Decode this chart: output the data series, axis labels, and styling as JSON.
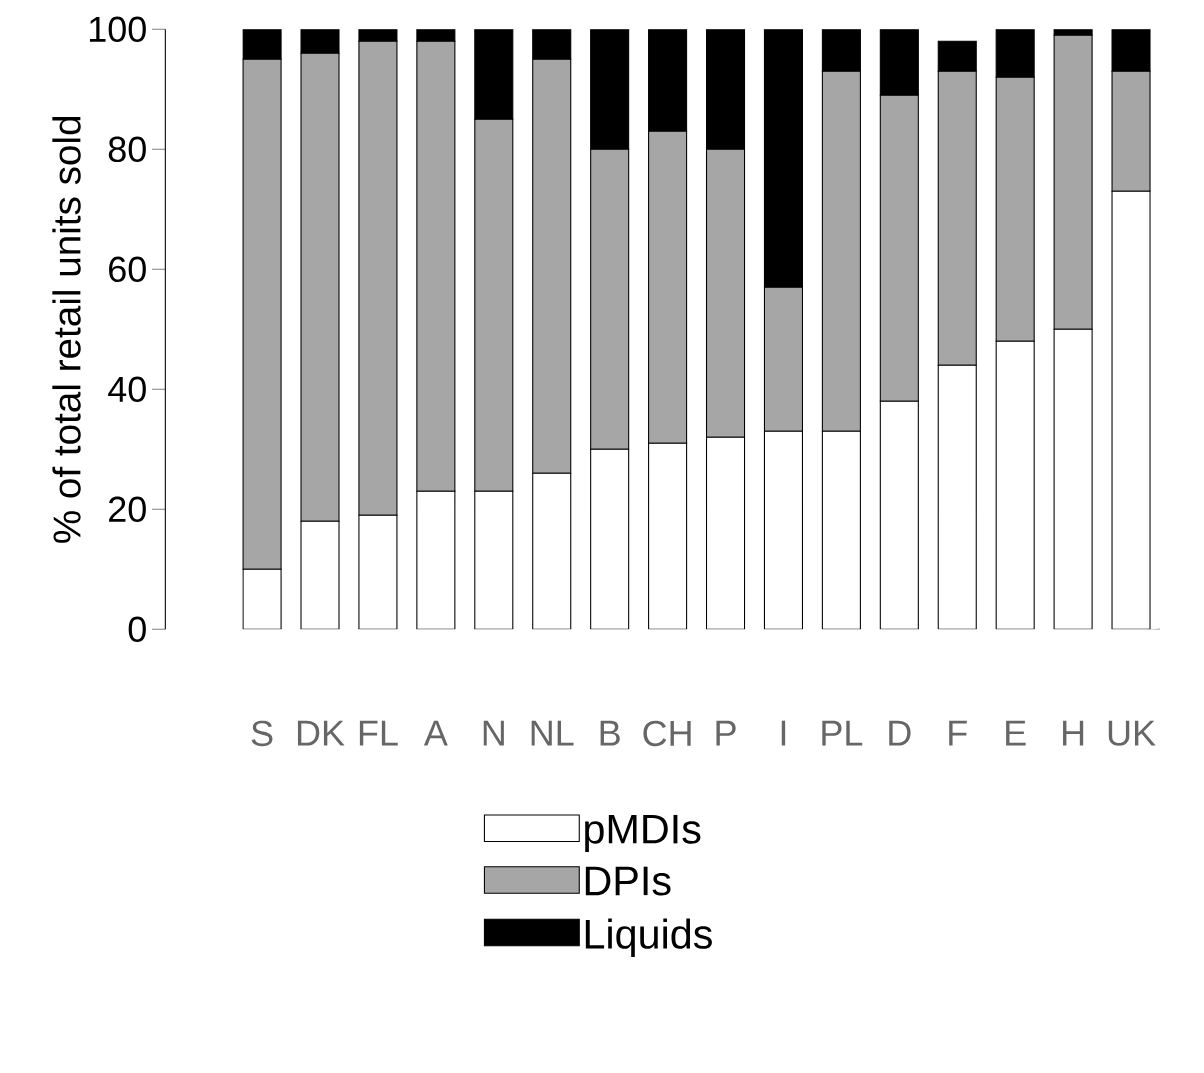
{
  "chart_data": {
    "type": "bar",
    "stacked": true,
    "ylabel": "% of total retail units sold",
    "categories": [
      "S",
      "DK",
      "FL",
      "A",
      "N",
      "NL",
      "B",
      "CH",
      "P",
      "I",
      "PL",
      "D",
      "F",
      "E",
      "H",
      "UK"
    ],
    "series": [
      {
        "name": "pMDIs",
        "color": "#ffffff",
        "values": [
          10,
          18,
          19,
          23,
          23,
          26,
          30,
          31,
          32,
          33,
          33,
          38,
          44,
          48,
          50,
          73
        ]
      },
      {
        "name": "DPIs",
        "color": "#a6a6a6",
        "values": [
          85,
          78,
          79,
          75,
          62,
          69,
          50,
          52,
          48,
          24,
          60,
          51,
          49,
          44,
          49,
          20
        ]
      },
      {
        "name": "Liquids",
        "color": "#000000",
        "values": [
          5,
          4,
          2,
          2,
          15,
          5,
          20,
          17,
          20,
          43,
          7,
          11,
          5,
          8,
          1,
          7
        ]
      }
    ],
    "ylim": [
      0,
      100
    ],
    "yticks": [
      0,
      20,
      40,
      60,
      80,
      100
    ],
    "grid": false,
    "legend": "bottom"
  }
}
